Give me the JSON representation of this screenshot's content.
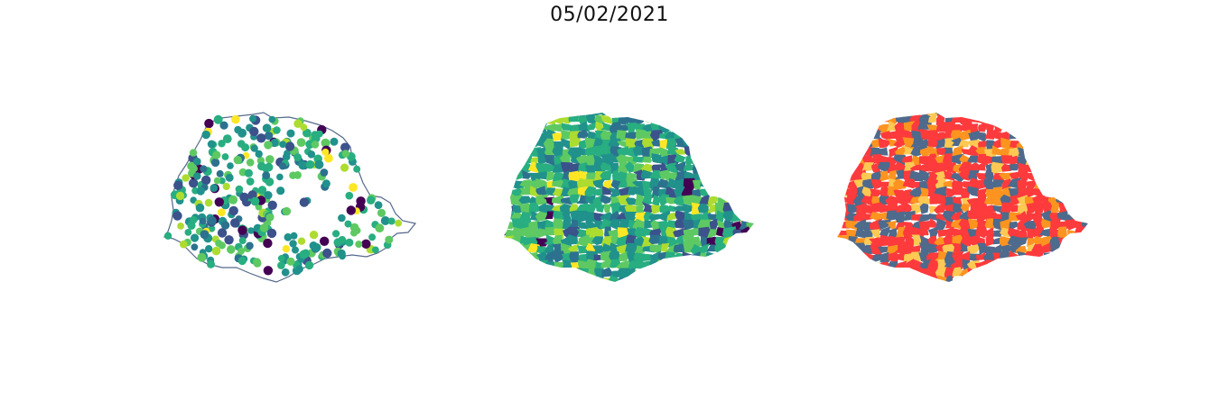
{
  "figure": {
    "title": "05/02/2021"
  },
  "panels": [
    {
      "kind": "point-map",
      "outline_color": "#55698a"
    },
    {
      "kind": "choropleth-map",
      "palette": "viridis"
    },
    {
      "kind": "categorical-choropleth-map"
    }
  ],
  "colors": {
    "viridis": [
      "#440154",
      "#3b528b",
      "#2c728e",
      "#21918c",
      "#28ae80",
      "#5ec962",
      "#addc30",
      "#fde725"
    ],
    "categories": [
      "#4e6a8c",
      "#fd3a3c",
      "#fd9420",
      "#fdc953"
    ]
  }
}
